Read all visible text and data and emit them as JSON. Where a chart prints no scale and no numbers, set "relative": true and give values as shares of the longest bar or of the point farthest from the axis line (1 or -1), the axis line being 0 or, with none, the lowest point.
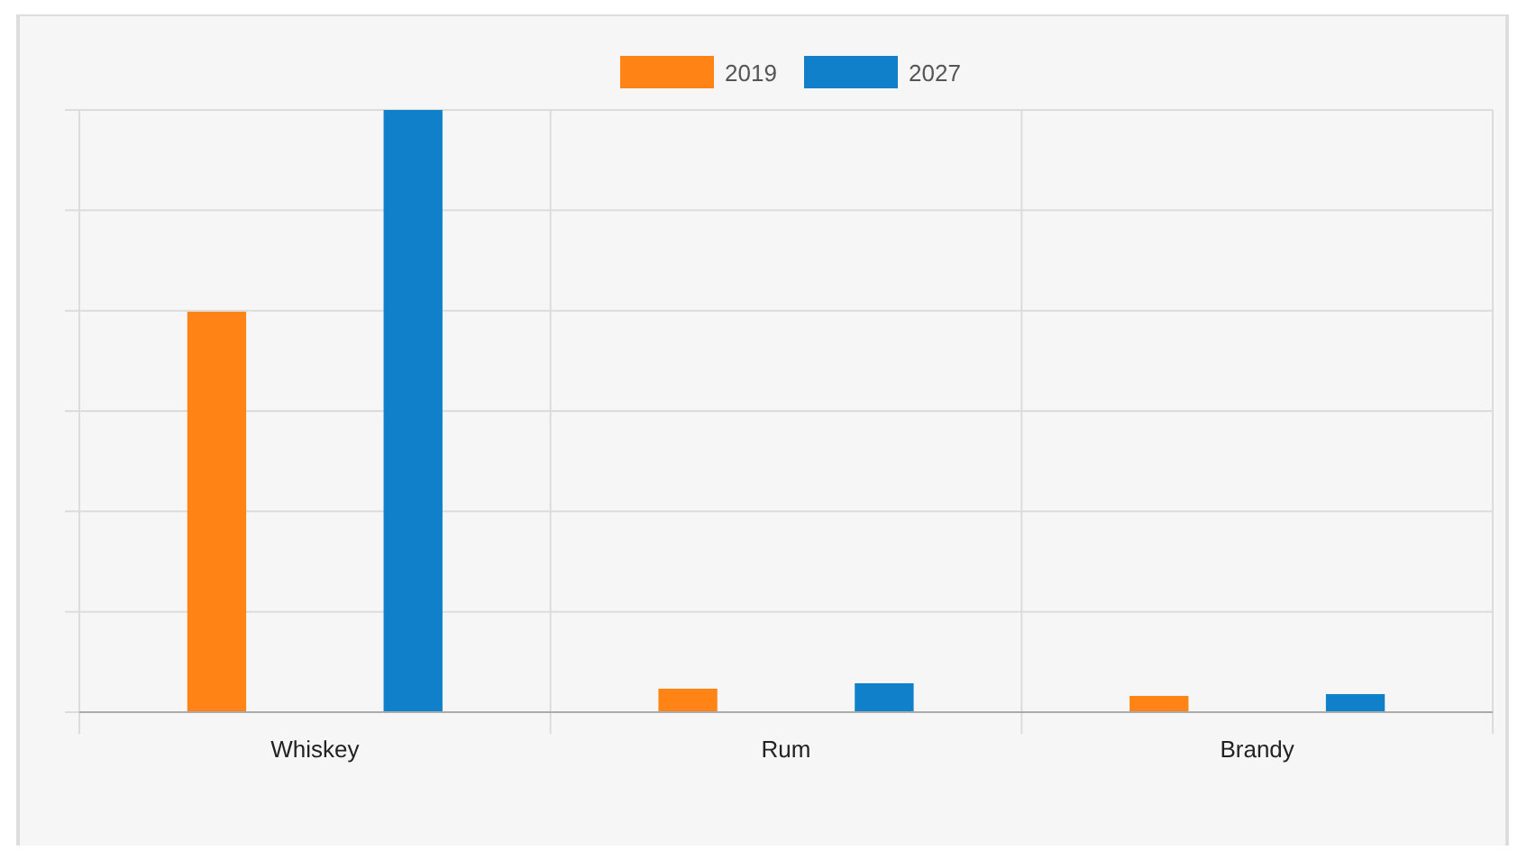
{
  "chart_data": {
    "type": "bar",
    "relative": true,
    "categories": [
      "Whiskey",
      "Rum",
      "Brandy"
    ],
    "series": [
      {
        "name": "2019",
        "color": "#ff8315",
        "values": [
          0.665,
          0.039,
          0.027
        ]
      },
      {
        "name": "2027",
        "color": "#0f80c9",
        "values": [
          1,
          0.048,
          0.03
        ]
      }
    ],
    "grid": true,
    "legend": "top"
  }
}
